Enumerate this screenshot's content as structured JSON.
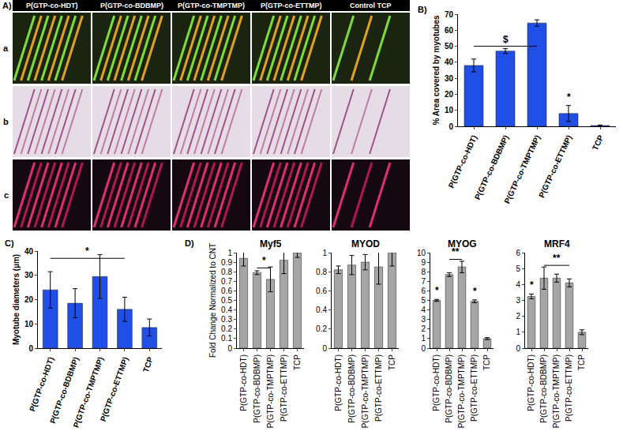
{
  "image_panel": {
    "label": "A)",
    "columns": [
      "P(GTP-co-HDT)",
      "P(GTP-co-BDBMP)",
      "P(GTP-co-TMPTMP)",
      "P(GTP-co-ETTMP)",
      "Control TCP"
    ],
    "rows": [
      "a",
      "b",
      "c"
    ]
  },
  "chart_data": [
    {
      "panel": "B)",
      "type": "bar",
      "categories": [
        "P(GTP-co-HDT)",
        "P(GTP-co-BDBMP)",
        "P(GTP-co-TMPTMP)",
        "P(GTP-co-ETTMP)",
        "TCP"
      ],
      "values": [
        38,
        47,
        64.5,
        8,
        0.5
      ],
      "errors": [
        4,
        1.5,
        2,
        5,
        0.3
      ],
      "color": "#1f4fe6",
      "y_label": "% Area covered by myotubes",
      "ylim": [
        0,
        70
      ],
      "yticks": [
        0,
        10,
        20,
        30,
        40,
        50,
        60,
        70
      ],
      "annotations": [
        {
          "text": "$",
          "x": [
            0,
            2
          ],
          "y": 50
        },
        {
          "text": "*",
          "x": 3,
          "y": 14
        }
      ]
    },
    {
      "panel": "C)",
      "type": "bar",
      "categories": [
        "P(GTP-co-HDT)",
        "P(GTP-co-BDBMP)",
        "P(GTP-co-TMPTMP)",
        "P(GTP-co-ETTMP)",
        "TCP"
      ],
      "values": [
        24,
        18.5,
        29.5,
        16,
        8.5
      ],
      "errors": [
        7.5,
        6,
        9,
        5,
        3.5
      ],
      "color": "#1f4fe6",
      "y_label": "Myotube diameters (µm)",
      "ylim": [
        0,
        40
      ],
      "yticks": [
        0,
        10,
        20,
        30,
        40
      ],
      "annotations": [
        {
          "text": "*",
          "x": [
            0,
            3
          ],
          "y": 37
        }
      ]
    },
    {
      "panel": "D)",
      "title": "Myf5",
      "type": "bar",
      "categories": [
        "P(GTP-co-HDT)",
        "P(GTP-co-BDBMP)",
        "P(GTP-co-TMPTMP)",
        "P(GTP-co-ETTMP)",
        "TCP"
      ],
      "values": [
        0.94,
        0.79,
        0.72,
        0.92,
        1.0
      ],
      "errors": [
        0.08,
        0.02,
        0.13,
        0.14,
        0.05
      ],
      "color": "#a6a6a6",
      "y_label": "Fold Change Normalized to CNT",
      "ylim": [
        0,
        1
      ],
      "yticks": [
        0,
        0.1,
        0.2,
        0.3,
        0.4,
        0.5,
        0.6,
        0.7,
        0.8,
        0.9,
        1
      ],
      "annotations": [
        {
          "text": "*",
          "x": [
            1,
            2
          ],
          "y": 0.84
        }
      ]
    },
    {
      "title": "MYOD",
      "type": "bar",
      "categories": [
        "P(GTP-co-HDT)",
        "P(GTP-co-BDBMP)",
        "P(GTP-co-TMPTMP)",
        "P(GTP-co-ETTMP)",
        "TCP"
      ],
      "values": [
        0.82,
        0.87,
        0.9,
        0.85,
        1.0
      ],
      "errors": [
        0.04,
        0.1,
        0.08,
        0.18,
        0.14
      ],
      "color": "#a6a6a6",
      "ylim": [
        0,
        1
      ],
      "yticks": [
        0,
        0.2,
        0.4,
        0.6,
        0.8,
        1
      ],
      "annotations": []
    },
    {
      "title": "MYOG",
      "type": "bar",
      "categories": [
        "P(GTP-co-HDT)",
        "P(GTP-co-BDBMP)",
        "P(GTP-co-TMPTMP)",
        "P(GTP-co-ETTMP)",
        "TCP"
      ],
      "values": [
        5.0,
        7.7,
        8.5,
        4.9,
        1.0
      ],
      "errors": [
        0.1,
        0.2,
        0.6,
        0.15,
        0.1
      ],
      "color": "#a6a6a6",
      "ylim": [
        0,
        10
      ],
      "yticks": [
        0,
        1,
        2,
        3,
        4,
        5,
        6,
        7,
        8,
        9,
        10
      ],
      "annotations": [
        {
          "text": "*",
          "x": 0,
          "y": 5.3
        },
        {
          "text": "**",
          "x": [
            1,
            2
          ],
          "y": 9.3
        },
        {
          "text": "*",
          "x": 3,
          "y": 5.2
        }
      ]
    },
    {
      "title": "MRF4",
      "type": "bar",
      "categories": [
        "P(GTP-co-HDT)",
        "P(GTP-co-BDBMP)",
        "P(GTP-co-TMPTMP)",
        "P(GTP-co-ETTMP)",
        "TCP"
      ],
      "values": [
        3.25,
        4.4,
        4.4,
        4.1,
        1.0
      ],
      "errors": [
        0.15,
        0.7,
        0.25,
        0.25,
        0.15
      ],
      "color": "#a6a6a6",
      "ylim": [
        0,
        6
      ],
      "yticks": [
        0,
        1,
        2,
        3,
        4,
        5,
        6
      ],
      "annotations": [
        {
          "text": "*",
          "x": 0,
          "y": 3.5
        },
        {
          "text": "**",
          "x": [
            1,
            3
          ],
          "y": 5.2
        }
      ]
    }
  ]
}
